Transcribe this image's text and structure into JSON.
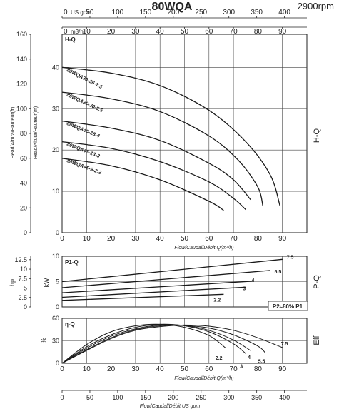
{
  "header": {
    "title": "80WQA",
    "speed": "2900rpm"
  },
  "chart_data": [
    {
      "type": "line",
      "panel": "H-Q",
      "side_label": "H-Q",
      "panel_label": "H-Q",
      "flow_axis_top_usgpm": {
        "label": "US gpm",
        "ticks": [
          0,
          50,
          100,
          150,
          200,
          250,
          300,
          350,
          400
        ]
      },
      "flow_axis_top_m3h": {
        "label": "m3/h",
        "ticks": [
          0,
          10,
          20,
          30,
          40,
          50,
          60,
          70,
          80,
          90
        ]
      },
      "xlabel": "Flow/Caudal/Débit Q(m³/h)",
      "xlim": [
        0,
        100
      ],
      "x_ticks": [
        0,
        10,
        20,
        30,
        40,
        50,
        60,
        70,
        80,
        90
      ],
      "ylabel": "Head/Altura/Hauteur(m)",
      "ylim": [
        0,
        48
      ],
      "y_ticks": [
        0,
        10,
        20,
        30,
        40
      ],
      "ylabel_secondary": "Head/Altura/Hauteur(ft)",
      "y_secondary_ticks": [
        0,
        20,
        40,
        60,
        80,
        100,
        120,
        140,
        160
      ],
      "y_secondary_max": 160,
      "series": [
        {
          "name": "80WQA30-36-7.5",
          "x": [
            0,
            20,
            40,
            60,
            75,
            85,
            89
          ],
          "y": [
            40,
            38.6,
            35.6,
            29.6,
            22.0,
            14.0,
            6.5
          ]
        },
        {
          "name": "80WQA30-30-5.5",
          "x": [
            0,
            20,
            40,
            60,
            72,
            80,
            82
          ],
          "y": [
            34,
            32.4,
            29.3,
            23.4,
            17.5,
            11.0,
            6.5
          ]
        },
        {
          "name": "80WQA40-18-4",
          "x": [
            0,
            20,
            40,
            60,
            70,
            77
          ],
          "y": [
            27,
            25.3,
            22.3,
            16.8,
            12.8,
            8.0
          ]
        },
        {
          "name": "80WQA43-13-3",
          "x": [
            0,
            20,
            40,
            60,
            70,
            75
          ],
          "y": [
            22,
            20.4,
            17.2,
            12.3,
            8.3,
            5.6
          ]
        },
        {
          "name": "80WQA45-9-2.2",
          "x": [
            0,
            20,
            40,
            60,
            66
          ],
          "y": [
            18,
            16.2,
            12.8,
            7.6,
            5.4
          ]
        }
      ]
    },
    {
      "type": "line",
      "panel": "P-Q",
      "side_label": "P-Q",
      "panel_label": "P1-Q",
      "note": "P2≈80% P1",
      "xlim": [
        0,
        100
      ],
      "ylabel": "kW",
      "ylim": [
        0,
        10
      ],
      "y_ticks": [
        0,
        5,
        10
      ],
      "ylabel_secondary": "hp",
      "y_secondary_ticks": [
        "0",
        "2.5",
        "5",
        "7.5",
        "10",
        "12.5"
      ],
      "y_secondary_max": 13.41,
      "series": [
        {
          "name": "7.5",
          "x": [
            0,
            90
          ],
          "y": [
            5.0,
            9.4
          ]
        },
        {
          "name": "5.5",
          "x": [
            0,
            85
          ],
          "y": [
            3.8,
            7.2
          ]
        },
        {
          "name": "4",
          "x": [
            0,
            78
          ],
          "y": [
            2.8,
            5.1
          ]
        },
        {
          "name": "3",
          "x": [
            0,
            75
          ],
          "y": [
            1.9,
            3.9
          ]
        },
        {
          "name": "2.2",
          "x": [
            0,
            66
          ],
          "y": [
            1.3,
            2.5
          ]
        }
      ]
    },
    {
      "type": "line",
      "panel": "Eff",
      "side_label": "Eff",
      "panel_label": "η-Q",
      "xlabel": "Flow/Caudal/Débit Q(m³/h)",
      "xlim": [
        0,
        100
      ],
      "x_ticks": [
        0,
        10,
        20,
        30,
        40,
        50,
        60,
        70,
        80,
        90
      ],
      "ylabel": "%",
      "ylim": [
        0,
        60
      ],
      "y_ticks": [
        0,
        30,
        60
      ],
      "bottom_axis_usgpm": {
        "label": "Flow/Caudal/Débit US gpm",
        "ticks": [
          0,
          50,
          100,
          150,
          200,
          250,
          300,
          350,
          400
        ]
      },
      "series": [
        {
          "name": "7.5",
          "x": [
            0,
            10,
            20,
            30,
            40,
            50,
            60,
            70,
            80,
            90
          ],
          "y": [
            0,
            17,
            33,
            44,
            49,
            51,
            49.5,
            44,
            34,
            21
          ]
        },
        {
          "name": "5.5",
          "x": [
            0,
            10,
            20,
            30,
            40,
            50,
            60,
            70,
            80,
            83
          ],
          "y": [
            0,
            18,
            34,
            45,
            50,
            50.5,
            47,
            38,
            23,
            14
          ]
        },
        {
          "name": "4",
          "x": [
            0,
            10,
            20,
            30,
            40,
            50,
            60,
            70,
            77
          ],
          "y": [
            0,
            20,
            36,
            46,
            51,
            50.5,
            44,
            31,
            17
          ]
        },
        {
          "name": "3",
          "x": [
            0,
            10,
            20,
            30,
            40,
            50,
            60,
            70,
            75
          ],
          "y": [
            0,
            22,
            38,
            48,
            52,
            50,
            42,
            26,
            13
          ]
        },
        {
          "name": "2.2",
          "x": [
            0,
            10,
            20,
            30,
            40,
            50,
            60,
            67
          ],
          "y": [
            0,
            25,
            42,
            50,
            52,
            48,
            37,
            20
          ]
        }
      ]
    }
  ]
}
